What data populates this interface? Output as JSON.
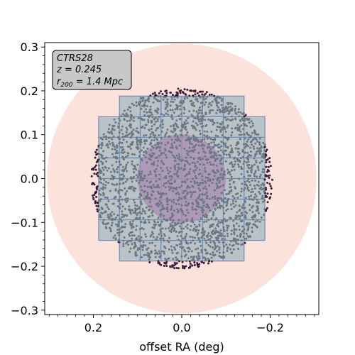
{
  "chart_data": {
    "type": "scatter",
    "xlabel": "offset RA (deg)",
    "ylabel": "",
    "xlim": [
      0.31,
      -0.31
    ],
    "ylim": [
      -0.31,
      0.31
    ],
    "x_reversed": true,
    "xticks": [
      0.2,
      0.0,
      -0.2
    ],
    "xtick_labels": [
      "0.2",
      "0.0",
      "−0.2"
    ],
    "yticks": [
      0.3,
      0.2,
      0.1,
      0.0,
      -0.1,
      -0.2,
      -0.3
    ],
    "ytick_labels": [
      "0.3",
      "0.2",
      "0.1",
      "0.0",
      "−0.1",
      "−0.2",
      "−0.3"
    ],
    "grid": false,
    "info_box": {
      "position": "top-left",
      "cluster": "CTRS28",
      "redshift": "z = 0.245",
      "radius_prefix": "r",
      "radius_sub": "200",
      "radius_value": " = 1.4 Mpc"
    },
    "circles": [
      {
        "name": "outer region",
        "center": [
          0.0,
          0.0
        ],
        "radius": 0.305,
        "color": "#fbe3dc"
      },
      {
        "name": "core region",
        "center": [
          0.0,
          0.0
        ],
        "radius": 0.1,
        "color": "#a98bb3"
      }
    ],
    "points": [
      {
        "name": "galaxies (outer ring)",
        "r_range": [
          0.18,
          0.205
        ],
        "approx_count": 200,
        "color": "#3b1d3a"
      },
      {
        "name": "galaxies (in mosaic)",
        "r_range": [
          0.0,
          0.205
        ],
        "approx_count": 2400,
        "color": "#6c7782"
      }
    ],
    "mosaic": {
      "tile_size": 0.047,
      "face_color": "#a9b8c1",
      "edge_color": "#6b8fb8",
      "columns": [
        {
          "x_from": 0.188,
          "x_to": 0.141,
          "y_from": -0.141,
          "y_to": 0.141
        },
        {
          "x_from": 0.141,
          "x_to": -0.141,
          "y_from": -0.188,
          "y_to": 0.188
        },
        {
          "x_from": -0.141,
          "x_to": -0.188,
          "y_from": -0.141,
          "y_to": 0.141
        }
      ]
    },
    "colors": {
      "outer_circle": "#fbe3dc",
      "core_circle": "#a98bb3",
      "tiles": "#a9b8c1",
      "tile_edges": "#6b8fb8",
      "points_inside": "#6c7782",
      "points_outside": "#3b1d3a",
      "info_box_fill": "#c8c8c8"
    }
  }
}
